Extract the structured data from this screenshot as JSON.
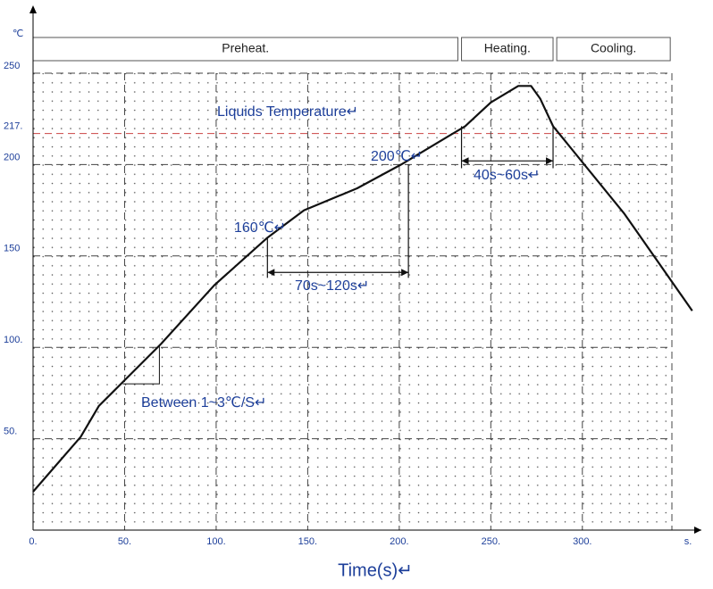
{
  "chart_data": {
    "type": "line",
    "x_label": "Time(s)↵",
    "x_unit": "s.",
    "y_unit": "℃",
    "x": [
      0,
      26,
      36,
      49,
      70,
      99,
      128,
      148,
      177,
      201,
      221,
      236,
      250,
      265,
      272,
      277,
      284,
      323,
      360
    ],
    "series": [
      {
        "color": "#111111",
        "values": [
          21,
          51,
          68,
          81,
          102,
          134,
          160,
          175,
          187,
          200,
          212,
          221,
          234,
          243,
          243,
          236,
          221,
          173,
          120
        ]
      }
    ],
    "xlim": [
      0,
      365
    ],
    "ylim": [
      0,
      250
    ],
    "xticks": [
      {
        "value": 0,
        "label": "0."
      },
      {
        "value": 50,
        "label": "50."
      },
      {
        "value": 100,
        "label": "100."
      },
      {
        "value": 150,
        "label": "150."
      },
      {
        "value": 200,
        "label": "200."
      },
      {
        "value": 250,
        "label": "250."
      },
      {
        "value": 300,
        "label": "300."
      }
    ],
    "yticks": [
      {
        "value": 50,
        "label": "50."
      },
      {
        "value": 100,
        "label": "100."
      },
      150,
      200,
      {
        "value": 217,
        "label": "217."
      },
      250
    ],
    "grid": true,
    "phases": [
      "Preheat.",
      "Heating.",
      "Cooling."
    ],
    "annotations": [
      "Liquids Temperature↵",
      "200℃↵",
      "160℃↵",
      "70s~120s↵",
      "40s~60s↵",
      "Between 1~3℃/S↵"
    ]
  }
}
